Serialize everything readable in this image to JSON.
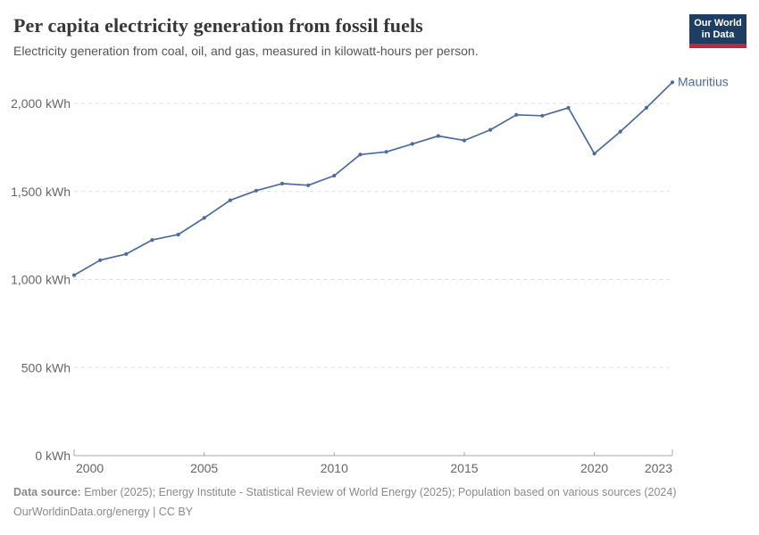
{
  "header": {
    "title": "Per capita electricity generation from fossil fuels",
    "subtitle": "Electricity generation from coal, oil, and gas, measured in kilowatt-hours per person."
  },
  "logo": {
    "line1": "Our World",
    "line2": "in Data",
    "bg_color": "#1d3d63",
    "accent_color": "#c0293c"
  },
  "chart_data": {
    "type": "line",
    "title": "Per capita electricity generation from fossil fuels",
    "unit": "kWh",
    "x": [
      2000,
      2001,
      2002,
      2003,
      2004,
      2005,
      2006,
      2007,
      2008,
      2009,
      2010,
      2011,
      2012,
      2013,
      2014,
      2015,
      2016,
      2017,
      2018,
      2019,
      2020,
      2021,
      2022,
      2023
    ],
    "series": [
      {
        "name": "Mauritius",
        "color": "#4C6A9C",
        "values": [
          1025,
          1110,
          1145,
          1225,
          1255,
          1350,
          1450,
          1505,
          1545,
          1535,
          1590,
          1710,
          1725,
          1770,
          1815,
          1790,
          1850,
          1935,
          1930,
          1975,
          1715,
          1840,
          1975,
          2120
        ]
      }
    ],
    "ylim": [
      0,
      2150
    ],
    "y_ticks": [
      0,
      500,
      1000,
      1500,
      2000
    ],
    "y_tick_labels": [
      "0 kWh",
      "500 kWh",
      "1,000 kWh",
      "1,500 kWh",
      "2,000 kWh"
    ],
    "x_ticks": [
      2000,
      2005,
      2010,
      2015,
      2020,
      2023
    ],
    "x_tick_labels": [
      "2000",
      "2005",
      "2010",
      "2015",
      "2020",
      "2023"
    ],
    "grid": "horizontal-dashed",
    "legend_position": "end-of-line-label",
    "end_label": "Mauritius"
  },
  "colors": {
    "line": "#4C6A9C",
    "grid": "#dedede",
    "axis": "#a9a9a9",
    "tick_label": "#666666"
  },
  "footer": {
    "source_label": "Data source:",
    "source_text": " Ember (2025); Energy Institute - Statistical Review of World Energy (2025); Population based on various sources (2024)",
    "license_line": "OurWorldinData.org/energy | CC BY"
  }
}
